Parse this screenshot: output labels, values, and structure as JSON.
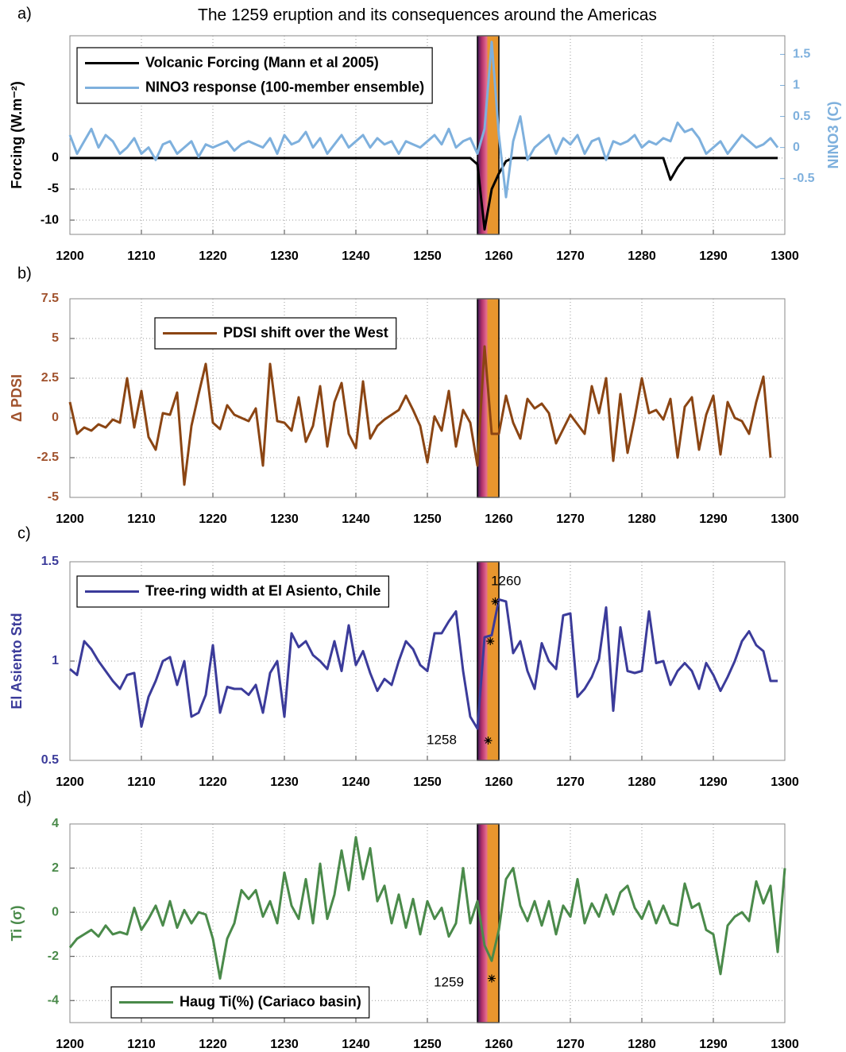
{
  "chart_data": [
    {
      "type": "line",
      "label": "a)",
      "title": "The 1259 eruption and its consequences around the Americas",
      "ylabel": "Forcing (W.m⁻²)",
      "y2label": "NINO3 (C)",
      "ylabel_color": "#000000",
      "y2label_color": "#7eb0dd",
      "xlim": [
        1200,
        1300
      ],
      "xticks": [
        1200,
        1210,
        1220,
        1230,
        1240,
        1250,
        1260,
        1270,
        1280,
        1290,
        1300
      ],
      "ylim": [
        -12.3,
        19.7
      ],
      "yticks": [
        -10,
        -5,
        0
      ],
      "y2lim": [
        -1.4,
        1.8
      ],
      "y2ticks": [
        -0.5,
        0,
        0.5,
        1,
        1.5
      ],
      "grid": true,
      "legend": "upper left",
      "span": [
        1257,
        1260
      ],
      "x": [
        1200,
        1201,
        1202,
        1203,
        1204,
        1205,
        1206,
        1207,
        1208,
        1209,
        1210,
        1211,
        1212,
        1213,
        1214,
        1215,
        1216,
        1217,
        1218,
        1219,
        1220,
        1221,
        1222,
        1223,
        1224,
        1225,
        1226,
        1227,
        1228,
        1229,
        1230,
        1231,
        1232,
        1233,
        1234,
        1235,
        1236,
        1237,
        1238,
        1239,
        1240,
        1241,
        1242,
        1243,
        1244,
        1245,
        1246,
        1247,
        1248,
        1249,
        1250,
        1251,
        1252,
        1253,
        1254,
        1255,
        1256,
        1257,
        1258,
        1259,
        1260,
        1261,
        1262,
        1263,
        1264,
        1265,
        1266,
        1267,
        1268,
        1269,
        1270,
        1271,
        1272,
        1273,
        1274,
        1275,
        1276,
        1277,
        1278,
        1279,
        1280,
        1281,
        1282,
        1283,
        1284,
        1285,
        1286,
        1287,
        1288,
        1289,
        1290,
        1291,
        1292,
        1293,
        1294,
        1295,
        1296,
        1297,
        1298,
        1299
      ],
      "series": [
        {
          "name": "Volcanic Forcing (Mann et al 2005)",
          "color": "#000000",
          "values": [
            0,
            0,
            0,
            0,
            0,
            0,
            0,
            0,
            0,
            0,
            0,
            0,
            0,
            0,
            0,
            0,
            0,
            0,
            0,
            0,
            0,
            0,
            0,
            0,
            0,
            0,
            0,
            0,
            0,
            0,
            0,
            0,
            0,
            0,
            0,
            0,
            0,
            0,
            0,
            0,
            0,
            0,
            0,
            0,
            0,
            0,
            0,
            0,
            0,
            0,
            0,
            0,
            0,
            0,
            0,
            0,
            0,
            -1,
            -11.5,
            -5,
            -2.5,
            -0.5,
            0,
            0,
            0,
            0,
            0,
            0,
            0,
            0,
            0,
            0,
            0,
            0,
            0,
            0,
            0,
            0,
            0,
            0,
            0,
            0,
            0,
            0,
            -3.5,
            -1.5,
            0,
            0,
            0,
            0,
            0,
            0,
            0,
            0,
            0,
            0,
            0,
            0,
            0,
            0
          ]
        },
        {
          "name": "NINO3 response (100-member ensemble)",
          "color": "#7eb0dd",
          "axis": "y2",
          "values": [
            0.2,
            -0.1,
            0.1,
            0.3,
            0,
            0.2,
            0.1,
            -0.1,
            0,
            0.15,
            -0.1,
            0,
            -0.2,
            0.05,
            0.1,
            -0.1,
            0,
            0.1,
            -0.15,
            0.05,
            0,
            0.05,
            0.1,
            -0.05,
            0.05,
            0.1,
            0.05,
            0,
            0.15,
            -0.1,
            0.2,
            0.05,
            0.1,
            0.25,
            0,
            0.15,
            -0.1,
            0.05,
            0.2,
            0,
            0.1,
            0.2,
            0,
            0.15,
            0.05,
            0.1,
            -0.1,
            0.1,
            0.05,
            0,
            0.1,
            0.2,
            0.05,
            0.3,
            0,
            0.1,
            0.15,
            -0.1,
            0.3,
            1.7,
            0.2,
            -0.8,
            0.1,
            0.5,
            -0.2,
            0,
            0.1,
            0.2,
            -0.1,
            0.15,
            0.05,
            0.2,
            -0.1,
            0.1,
            0.15,
            -0.2,
            0.1,
            0.05,
            0.1,
            0.2,
            0,
            0.1,
            0.05,
            0.15,
            0.1,
            0.4,
            0.25,
            0.3,
            0.15,
            -0.1,
            0,
            0.1,
            -0.1,
            0.05,
            0.2,
            0.1,
            0,
            0.05,
            0.15,
            0
          ]
        }
      ]
    },
    {
      "type": "line",
      "label": "b)",
      "ylabel": "Δ PDSI",
      "ylabel_color": "#a0522d",
      "xlim": [
        1200,
        1300
      ],
      "xticks": [
        1200,
        1210,
        1220,
        1230,
        1240,
        1250,
        1260,
        1270,
        1280,
        1290,
        1300
      ],
      "ylim": [
        -5,
        7.5
      ],
      "yticks": [
        -5,
        -2.5,
        0,
        2.5,
        5,
        7.5
      ],
      "grid": true,
      "legend": "upper center",
      "span": [
        1257,
        1260
      ],
      "x": [
        1200,
        1201,
        1202,
        1203,
        1204,
        1205,
        1206,
        1207,
        1208,
        1209,
        1210,
        1211,
        1212,
        1213,
        1214,
        1215,
        1216,
        1217,
        1218,
        1219,
        1220,
        1221,
        1222,
        1223,
        1224,
        1225,
        1226,
        1227,
        1228,
        1229,
        1230,
        1231,
        1232,
        1233,
        1234,
        1235,
        1236,
        1237,
        1238,
        1239,
        1240,
        1241,
        1242,
        1243,
        1244,
        1245,
        1246,
        1247,
        1248,
        1249,
        1250,
        1251,
        1252,
        1253,
        1254,
        1255,
        1256,
        1257,
        1258,
        1259,
        1260,
        1261,
        1262,
        1263,
        1264,
        1265,
        1266,
        1267,
        1268,
        1269,
        1270,
        1271,
        1272,
        1273,
        1274,
        1275,
        1276,
        1277,
        1278,
        1279,
        1280,
        1281,
        1282,
        1283,
        1284,
        1285,
        1286,
        1287,
        1288,
        1289,
        1290,
        1291,
        1292,
        1293,
        1294,
        1295,
        1296,
        1297,
        1298
      ],
      "series": [
        {
          "name": "PDSI shift over the West",
          "color": "#8b4513",
          "values": [
            1,
            -1,
            -0.6,
            -0.8,
            -0.4,
            -0.6,
            -0.1,
            -0.3,
            2.5,
            -0.6,
            1.7,
            -1.2,
            -2,
            0.3,
            0.2,
            1.6,
            -4.2,
            -0.5,
            1.5,
            3.4,
            -0.3,
            -0.7,
            0.8,
            0.2,
            0,
            -0.2,
            0.6,
            -3,
            3.4,
            -0.2,
            -0.3,
            -0.8,
            1.3,
            -1.5,
            -0.5,
            2,
            -1.8,
            1,
            2.2,
            -1,
            -1.9,
            2.3,
            -1.3,
            -0.5,
            -0.1,
            0.2,
            0.5,
            1.4,
            0.5,
            -0.5,
            -2.8,
            0.1,
            -0.8,
            1.7,
            -1.8,
            0.5,
            -0.3,
            -3,
            4.5,
            -1,
            -1,
            1.4,
            -0.3,
            -1.3,
            1.2,
            0.6,
            0.9,
            0.3,
            -1.6,
            -0.7,
            0.2,
            -0.4,
            -1,
            2,
            0.3,
            2.5,
            -2.7,
            1.5,
            -2.2,
            0,
            2.5,
            0.3,
            0.5,
            -0.1,
            1.2,
            -2.5,
            0.7,
            1.3,
            -2,
            0.2,
            1.4,
            -2.3,
            1,
            0,
            -0.2,
            -1,
            1,
            2.6,
            -2.5
          ]
        }
      ]
    },
    {
      "type": "line",
      "label": "c)",
      "ylabel": "El Asiento Std",
      "ylabel_color": "#3b3b9a",
      "xlim": [
        1200,
        1300
      ],
      "xticks": [
        1200,
        1210,
        1220,
        1230,
        1240,
        1250,
        1260,
        1270,
        1280,
        1290,
        1300
      ],
      "ylim": [
        0.5,
        1.5
      ],
      "yticks": [
        0.5,
        1,
        1.5
      ],
      "grid": true,
      "legend": "upper left",
      "span": [
        1257,
        1260
      ],
      "x": [
        1200,
        1201,
        1202,
        1203,
        1204,
        1205,
        1206,
        1207,
        1208,
        1209,
        1210,
        1211,
        1212,
        1213,
        1214,
        1215,
        1216,
        1217,
        1218,
        1219,
        1220,
        1221,
        1222,
        1223,
        1224,
        1225,
        1226,
        1227,
        1228,
        1229,
        1230,
        1231,
        1232,
        1233,
        1234,
        1235,
        1236,
        1237,
        1238,
        1239,
        1240,
        1241,
        1242,
        1243,
        1244,
        1245,
        1246,
        1247,
        1248,
        1249,
        1250,
        1251,
        1252,
        1253,
        1254,
        1255,
        1256,
        1257,
        1258,
        1259,
        1260,
        1261,
        1262,
        1263,
        1264,
        1265,
        1266,
        1267,
        1268,
        1269,
        1270,
        1271,
        1272,
        1273,
        1274,
        1275,
        1276,
        1277,
        1278,
        1279,
        1280,
        1281,
        1282,
        1283,
        1284,
        1285,
        1286,
        1287,
        1288,
        1289,
        1290,
        1291,
        1292,
        1293,
        1294,
        1295,
        1296,
        1297,
        1298,
        1299
      ],
      "series": [
        {
          "name": "Tree-ring width at El Asiento, Chile",
          "color": "#3b3b9a",
          "values": [
            0.96,
            0.93,
            1.1,
            1.06,
            1.0,
            0.95,
            0.9,
            0.86,
            0.93,
            0.94,
            0.67,
            0.82,
            0.9,
            1.0,
            1.02,
            0.88,
            1.0,
            0.72,
            0.74,
            0.83,
            1.08,
            0.74,
            0.87,
            0.86,
            0.86,
            0.83,
            0.88,
            0.74,
            0.94,
            1.0,
            0.72,
            1.14,
            1.07,
            1.1,
            1.03,
            1.0,
            0.96,
            1.1,
            0.95,
            1.18,
            0.98,
            1.05,
            0.94,
            0.85,
            0.91,
            0.88,
            1.0,
            1.1,
            1.06,
            0.98,
            0.95,
            1.14,
            1.14,
            1.2,
            1.25,
            0.95,
            0.72,
            0.66,
            1.12,
            1.13,
            1.31,
            1.3,
            1.04,
            1.1,
            0.95,
            0.86,
            1.09,
            1.0,
            0.96,
            1.23,
            1.24,
            0.82,
            0.86,
            0.92,
            1.01,
            1.27,
            0.75,
            1.17,
            0.95,
            0.94,
            0.95,
            1.25,
            0.99,
            1.0,
            0.88,
            0.95,
            0.99,
            0.95,
            0.86,
            0.99,
            0.93,
            0.85,
            0.92,
            1.0,
            1.1,
            1.15,
            1.08,
            1.05,
            0.9,
            0.9
          ]
        }
      ],
      "annotations": [
        {
          "text": "1260",
          "x": 1261,
          "y": 1.4
        },
        {
          "text": "1258",
          "x": 1252,
          "y": 0.6
        }
      ],
      "markers": {
        "x": [
          1259.5,
          1258.8,
          1258.5
        ],
        "y": [
          1.3,
          1.1,
          0.6
        ]
      }
    },
    {
      "type": "line",
      "label": "d)",
      "ylabel": "Ti (σ)",
      "ylabel_color": "#4a8a4a",
      "xlim": [
        1200,
        1300
      ],
      "xticks": [
        1200,
        1210,
        1220,
        1230,
        1240,
        1250,
        1260,
        1270,
        1280,
        1290,
        1300
      ],
      "ylim": [
        -5,
        4
      ],
      "yticks": [
        -4,
        -2,
        0,
        2,
        4
      ],
      "grid": true,
      "legend": "lower left",
      "span": [
        1257,
        1260
      ],
      "x": [
        1200,
        1201,
        1202,
        1203,
        1204,
        1205,
        1206,
        1207,
        1208,
        1209,
        1210,
        1211,
        1212,
        1213,
        1214,
        1215,
        1216,
        1217,
        1218,
        1219,
        1220,
        1221,
        1222,
        1223,
        1224,
        1225,
        1226,
        1227,
        1228,
        1229,
        1230,
        1231,
        1232,
        1233,
        1234,
        1235,
        1236,
        1237,
        1238,
        1239,
        1240,
        1241,
        1242,
        1243,
        1244,
        1245,
        1246,
        1247,
        1248,
        1249,
        1250,
        1251,
        1252,
        1253,
        1254,
        1255,
        1256,
        1257,
        1258,
        1259,
        1260,
        1261,
        1262,
        1263,
        1264,
        1265,
        1266,
        1267,
        1268,
        1269,
        1270,
        1271,
        1272,
        1273,
        1274,
        1275,
        1276,
        1277,
        1278,
        1279,
        1280,
        1281,
        1282,
        1283,
        1284,
        1285,
        1286,
        1287,
        1288,
        1289,
        1290,
        1291,
        1292,
        1293,
        1294,
        1295,
        1296,
        1297,
        1298,
        1299,
        1300
      ],
      "series": [
        {
          "name": "Haug Ti(%) (Cariaco basin)",
          "color": "#4a8a4a",
          "values": [
            -1.6,
            -1.2,
            -1.0,
            -0.8,
            -1.1,
            -0.6,
            -1.0,
            -0.9,
            -1.0,
            0.2,
            -0.8,
            -0.3,
            0.3,
            -0.6,
            0.5,
            -0.7,
            0.1,
            -0.5,
            0.0,
            -0.1,
            -1.2,
            -3.0,
            -1.2,
            -0.5,
            1.0,
            0.6,
            1.0,
            -0.2,
            0.5,
            -0.5,
            1.8,
            0.3,
            -0.3,
            1.5,
            -0.5,
            2.2,
            -0.3,
            0.8,
            2.8,
            1.0,
            3.4,
            1.5,
            2.9,
            0.5,
            1.2,
            -0.5,
            0.8,
            -0.7,
            0.6,
            -1.0,
            0.5,
            -0.3,
            0.2,
            -1.1,
            -0.5,
            2.0,
            -0.5,
            0.5,
            -1.5,
            -2.2,
            -0.8,
            1.5,
            2.0,
            0.3,
            -0.4,
            0.5,
            -0.6,
            0.5,
            -1.0,
            0.3,
            -0.2,
            1.5,
            -0.5,
            0.4,
            -0.2,
            0.8,
            -0.1,
            0.9,
            1.2,
            0.2,
            -0.3,
            0.5,
            -0.5,
            0.3,
            -0.5,
            -0.6,
            1.3,
            0.2,
            0.4,
            -0.8,
            -1.0,
            -2.8,
            -0.6,
            -0.2,
            0.0,
            -0.4,
            1.4,
            0.4,
            1.2,
            -1.8,
            2.0
          ]
        }
      ],
      "annotations": [
        {
          "text": "1259",
          "x": 1253,
          "y": -3.2
        }
      ],
      "markers": {
        "x": [
          1259
        ],
        "y": [
          -3
        ]
      }
    }
  ]
}
